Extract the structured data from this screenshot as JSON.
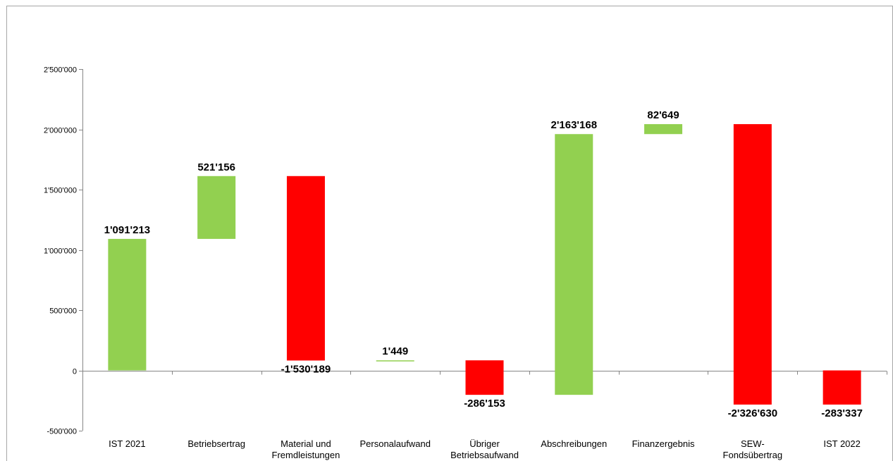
{
  "chart_data": {
    "type": "bar",
    "subtype": "waterfall",
    "title": "",
    "xlabel": "",
    "ylabel": "",
    "ylim": [
      -500000,
      2500000
    ],
    "yticks": [
      -500000,
      0,
      500000,
      1000000,
      1500000,
      2000000,
      2500000
    ],
    "ytick_labels": [
      "-500'000",
      "0",
      "500'000",
      "1'000'000",
      "1'500'000",
      "2'000'000",
      "2'500'000"
    ],
    "grid": false,
    "legend": "none",
    "colors": {
      "positive": "#92D050",
      "negative": "#FF0000"
    },
    "categories": [
      [
        "IST 2021"
      ],
      [
        "Betriebsertrag"
      ],
      [
        "Material und",
        "Fremdleistungen"
      ],
      [
        "Personalaufwand"
      ],
      [
        "Übriger",
        "Betriebsaufwand"
      ],
      [
        "Abschreibungen"
      ],
      [
        "Finanzergebnis"
      ],
      [
        "SEW-",
        "Fondsübertrag"
      ],
      [
        "IST 2022"
      ]
    ],
    "bars": [
      {
        "start": 0,
        "end": 1091213,
        "color": "positive",
        "label": "1'091'213",
        "label_pos": "above"
      },
      {
        "start": 1091213,
        "end": 1612369,
        "color": "positive",
        "label": "521'156",
        "label_pos": "above"
      },
      {
        "start": 1612369,
        "end": 82180,
        "color": "negative",
        "label": "-1'530'189",
        "label_pos": "below"
      },
      {
        "start": 82180,
        "end": 83629,
        "color": "positive",
        "label": "1'449",
        "label_pos": "above"
      },
      {
        "start": 83629,
        "end": -202524,
        "color": "negative",
        "label": "-286'153",
        "label_pos": "below"
      },
      {
        "start": -202524,
        "end": 1960644,
        "color": "positive",
        "label": "2'163'168",
        "label_pos": "above"
      },
      {
        "start": 1960644,
        "end": 2043293,
        "color": "positive",
        "label": "82'649",
        "label_pos": "above"
      },
      {
        "start": 2043293,
        "end": -283337,
        "color": "negative",
        "label": "-2'326'630",
        "label_pos": "below"
      },
      {
        "start": 0,
        "end": -283337,
        "color": "negative",
        "label": "-283'337",
        "label_pos": "below"
      }
    ]
  }
}
